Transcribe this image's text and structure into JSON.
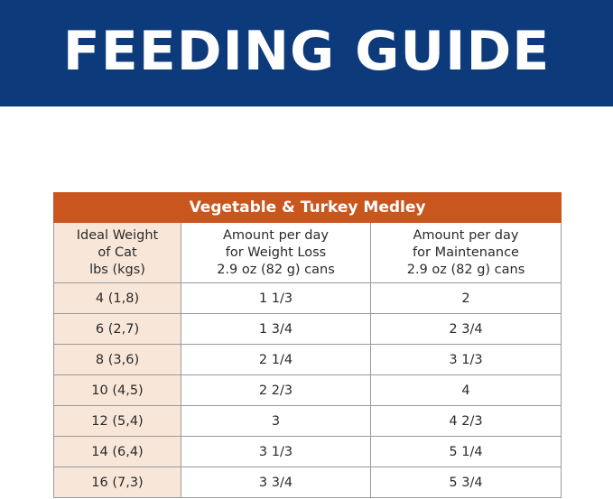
{
  "banner": {
    "title": "FEEDING GUIDE"
  },
  "table": {
    "product_name": "Vegetable & Turkey Medley",
    "headers": [
      [
        "Ideal Weight",
        "of Cat",
        "lbs (kgs)"
      ],
      [
        "Amount per day",
        "for Weight Loss",
        "2.9 oz (82 g) cans"
      ],
      [
        "Amount per day",
        "for Maintenance",
        "2.9 oz (82 g) cans"
      ]
    ],
    "rows": [
      [
        "4 (1,8)",
        "1 1/3",
        "2"
      ],
      [
        "6 (2,7)",
        "1 3/4",
        "2 3/4"
      ],
      [
        "8 (3,6)",
        "2 1/4",
        "3 1/3"
      ],
      [
        "10 (4,5)",
        "2 2/3",
        "4"
      ],
      [
        "12 (5,4)",
        "3",
        "4 2/3"
      ],
      [
        "14 (6,4)",
        "3 1/3",
        "5 1/4"
      ],
      [
        "16 (7,3)",
        "3 3/4",
        "5 3/4"
      ]
    ]
  },
  "colors": {
    "banner_background": "#0c3a7a",
    "product_header_background": "#c8561e",
    "weight_column_background": "#f8e6d8"
  }
}
